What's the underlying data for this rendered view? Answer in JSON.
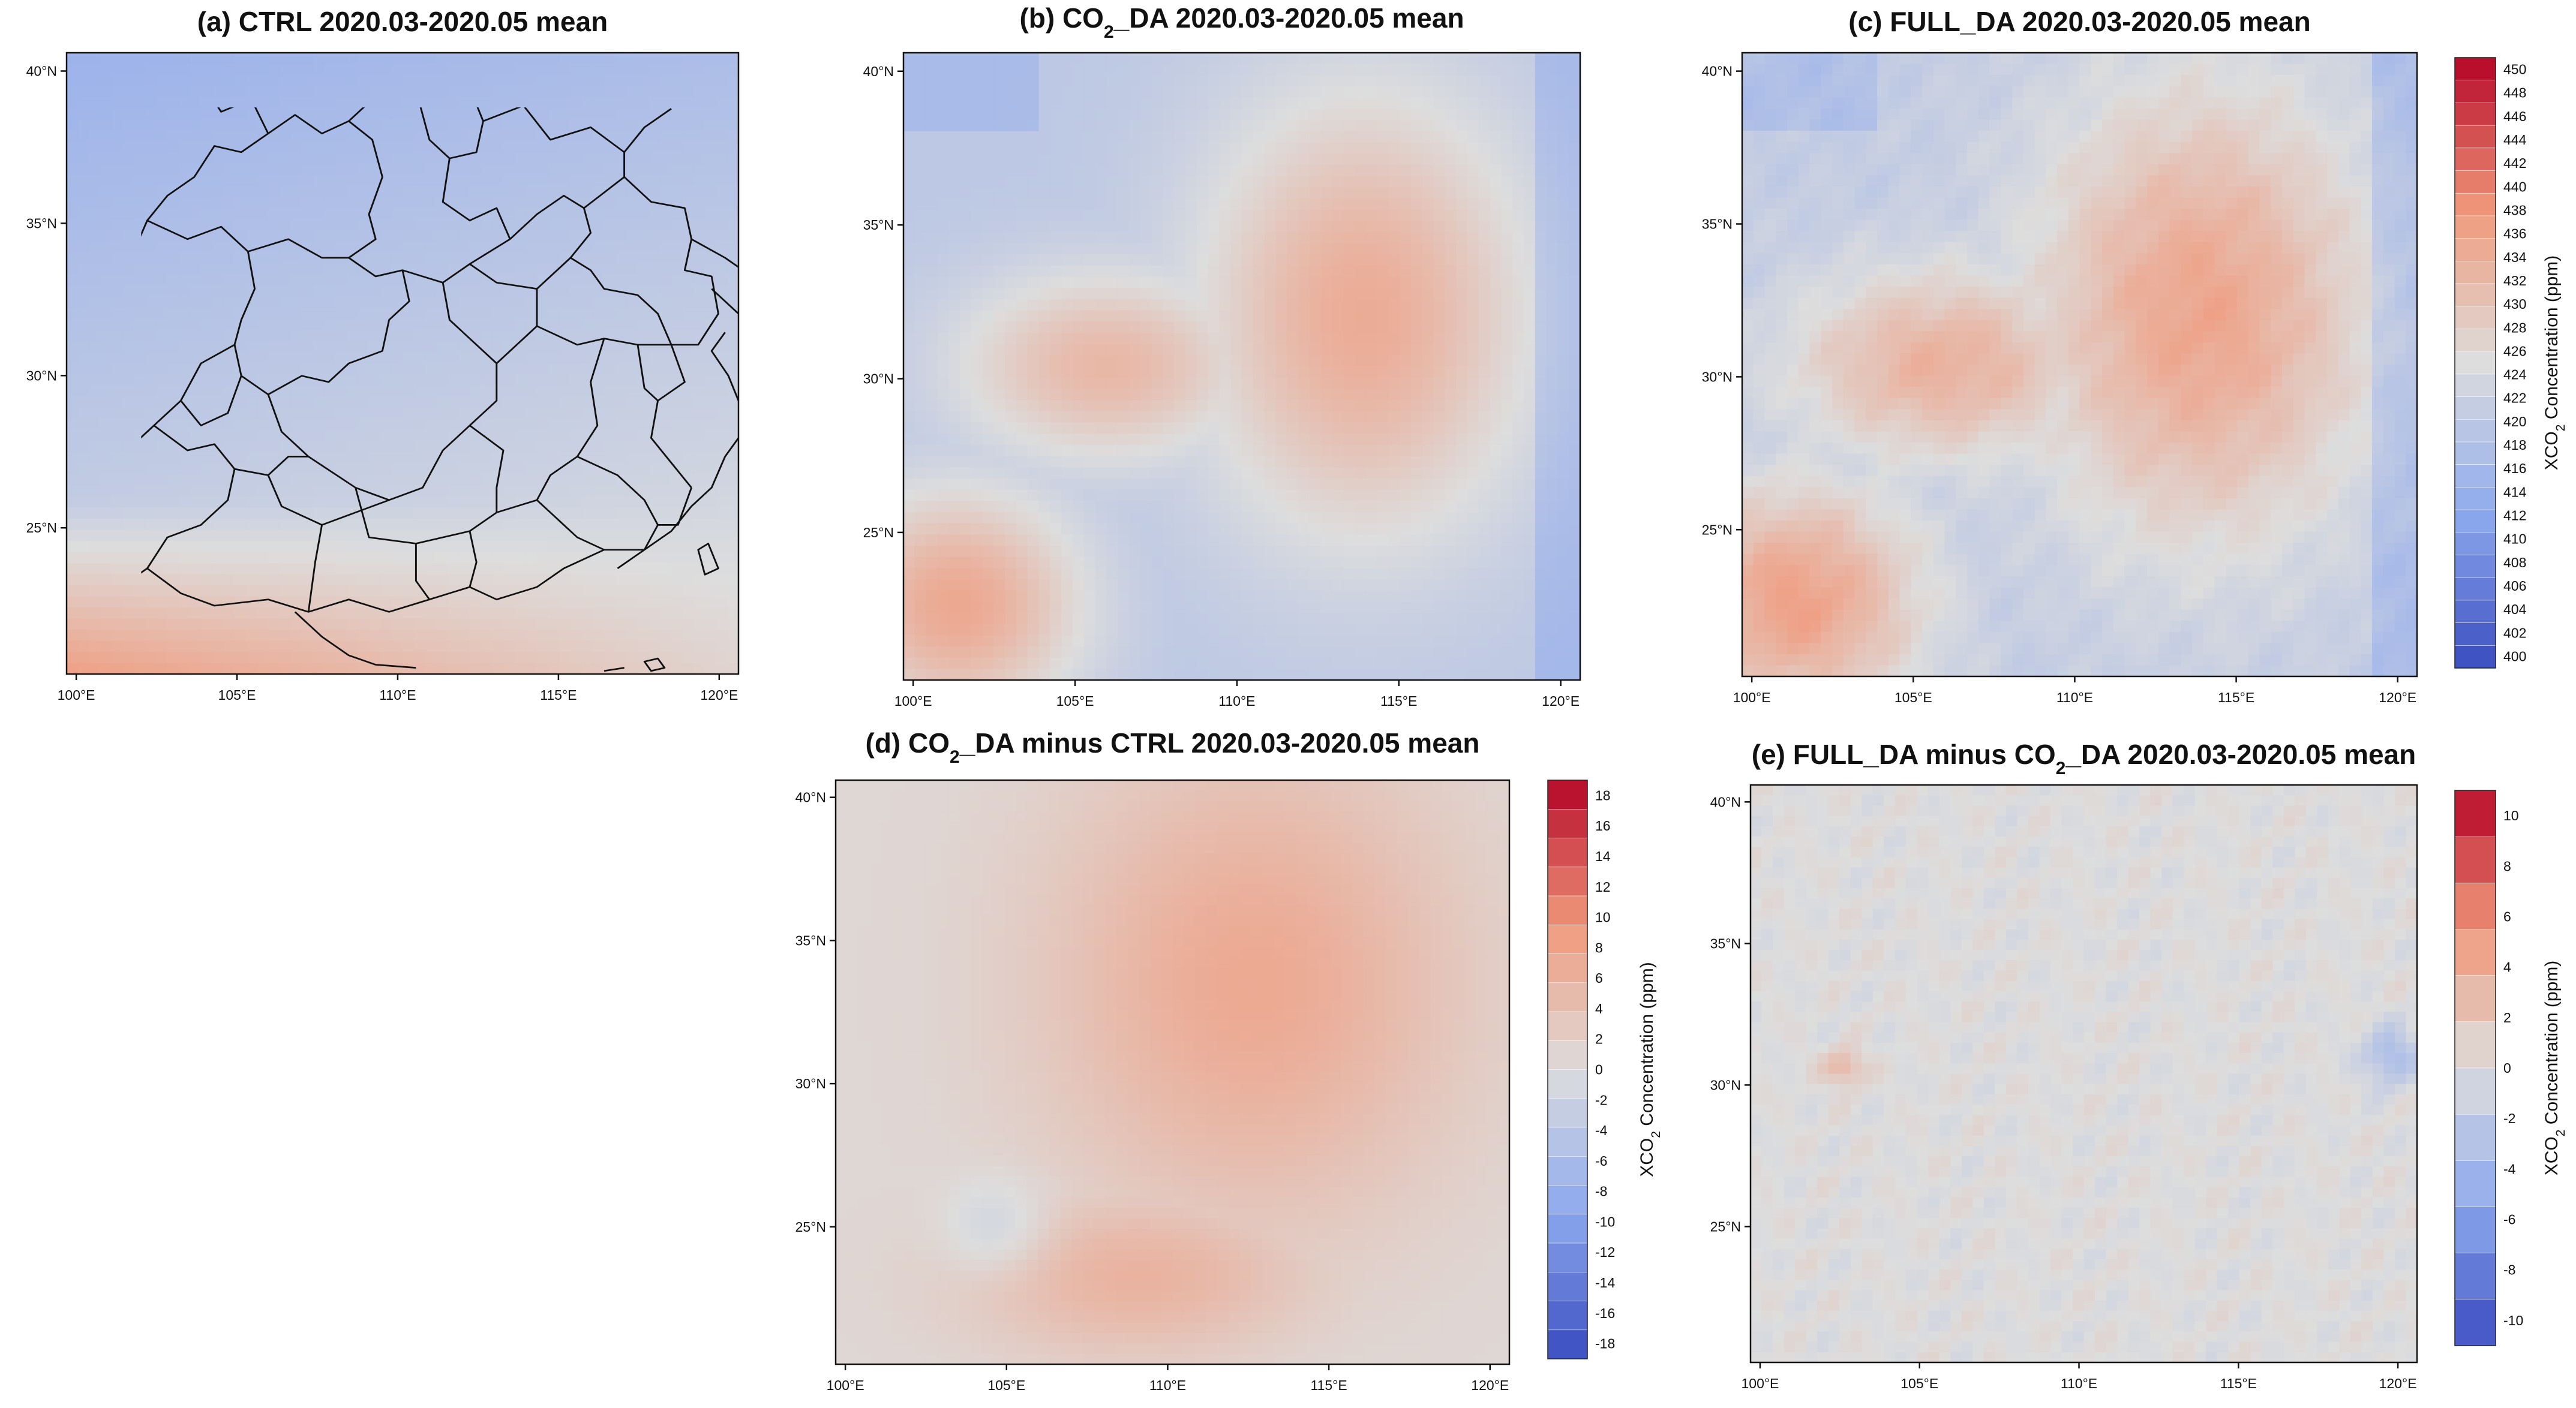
{
  "figure": {
    "panels": [
      {
        "id": "a",
        "title": "(a) CTRL 2020.03-2020.05 mean",
        "field": "ctrl",
        "colorbar": null
      },
      {
        "id": "b",
        "title": "(b) CO",
        "title_sub": "2",
        "title_rest": "_DA 2020.03-2020.05 mean",
        "field": "co2da",
        "colorbar": null
      },
      {
        "id": "c",
        "title": "(c) FULL_DA 2020.03-2020.05 mean",
        "field": "fullda",
        "colorbar": "abs"
      },
      {
        "id": "d",
        "title": "(d) CO",
        "title_sub": "2",
        "title_rest": "_DA minus CTRL 2020.03-2020.05 mean",
        "field": "diff1",
        "colorbar": "d1"
      },
      {
        "id": "e",
        "title": "(e) FULL_DA minus CO",
        "title_sub": "2",
        "title_rest": "_DA 2020.03-2020.05 mean",
        "field": "diff2",
        "colorbar": "d2"
      }
    ],
    "x_ticks": [
      "100°E",
      "105°E",
      "110°E",
      "115°E",
      "120°E"
    ],
    "x_tick_values": [
      100,
      105,
      110,
      115,
      120
    ],
    "y_ticks": [
      "25°N",
      "30°N",
      "35°N",
      "40°N"
    ],
    "y_tick_values": [
      25,
      30,
      35,
      40
    ],
    "lon_range": [
      99.7,
      120.6
    ],
    "lat_range": [
      20.2,
      40.6
    ]
  },
  "colorbars": {
    "abs": {
      "label_main": "XCO",
      "label_sub": "2",
      "label_rest": " Concentration (ppm)",
      "min": 399,
      "max": 451,
      "tick_labels": [
        "400",
        "402",
        "404",
        "406",
        "408",
        "410",
        "412",
        "414",
        "416",
        "418",
        "420",
        "422",
        "424",
        "426",
        "428",
        "430",
        "432",
        "434",
        "436",
        "438",
        "440",
        "442",
        "444",
        "446",
        "448",
        "450"
      ]
    },
    "d1": {
      "label_main": "XCO",
      "label_sub": "2",
      "label_rest": " Concentration (ppm)",
      "min": -19,
      "max": 19,
      "tick_labels": [
        "-18",
        "-16",
        "-14",
        "-12",
        "-10",
        "-8",
        "-6",
        "-4",
        "-2",
        "0",
        "2",
        "4",
        "6",
        "8",
        "10",
        "12",
        "14",
        "16",
        "18"
      ]
    },
    "d2": {
      "label_main": "XCO",
      "label_sub": "2",
      "label_rest": " Concentration (ppm)",
      "min": -11,
      "max": 11,
      "tick_labels": [
        "-10",
        "-8",
        "-6",
        "-4",
        "-2",
        "0",
        "2",
        "4",
        "6",
        "8",
        "10"
      ]
    }
  },
  "colors": {
    "blue_end": "#3a4cc0",
    "neutral": "#dcdcdc",
    "red_end": "#b40426",
    "ctrl_blue": "#b3c8f0",
    "ctrl_red": "#e8907a",
    "da_red": "#ee8f75"
  }
}
